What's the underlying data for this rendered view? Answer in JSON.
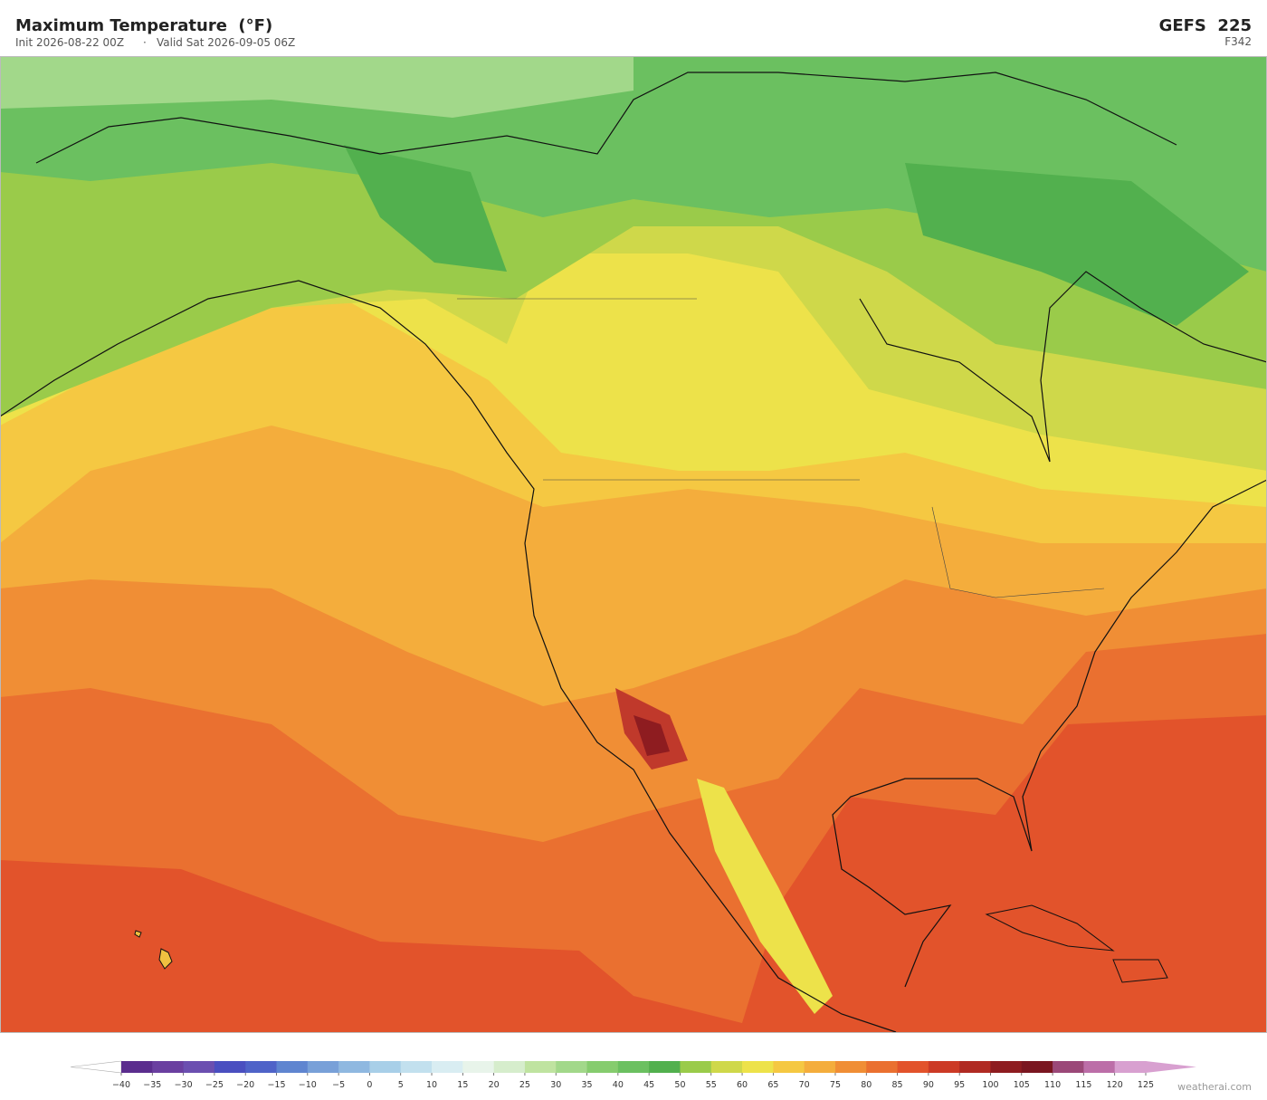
{
  "header": {
    "title": "Maximum Temperature  (°F)",
    "init": "Init 2026-08-22 00Z",
    "separator": "·",
    "valid": "Valid Sat 2026-09-05 06Z",
    "model": "GEFS  225",
    "forecast_hour": "F342"
  },
  "colorbar": {
    "ticks": [
      {
        "value": -40,
        "label": "−40"
      },
      {
        "value": -35,
        "label": "−35"
      },
      {
        "value": -30,
        "label": "−30"
      },
      {
        "value": -25,
        "label": "−25"
      },
      {
        "value": -20,
        "label": "−20"
      },
      {
        "value": -15,
        "label": "−15"
      },
      {
        "value": -10,
        "label": "−10"
      },
      {
        "value": -5,
        "label": "−5"
      },
      0,
      5,
      10,
      15,
      20,
      25,
      30,
      35,
      40,
      45,
      50,
      55,
      60,
      65,
      70,
      75,
      80,
      85,
      90,
      95,
      100,
      105,
      110,
      115,
      120,
      125
    ],
    "colors": [
      "#5b2d8e",
      "#6a3fa0",
      "#6b4fb0",
      "#4a4fc0",
      "#4f63c8",
      "#5f85d0",
      "#78a0d8",
      "#8fb8e0",
      "#a8cfe8",
      "#c2e0ee",
      "#d9edf2",
      "#e8f4ea",
      "#d6edcc",
      "#bfe3a0",
      "#a2d88a",
      "#86cc6e",
      "#6bc060",
      "#52b04e",
      "#9acb4a",
      "#cfd84a",
      "#ede24a",
      "#f5c842",
      "#f4ad3c",
      "#f08e35",
      "#ea7030",
      "#e2532b",
      "#cc3a25",
      "#b02a22",
      "#8e1c20",
      "#7a1620",
      "#9b4878",
      "#bc6ea8",
      "#d8a0d0"
    ],
    "under_color": "#ffffff",
    "over_color": "#d8a0d0"
  },
  "credit": "weatherai.com"
}
